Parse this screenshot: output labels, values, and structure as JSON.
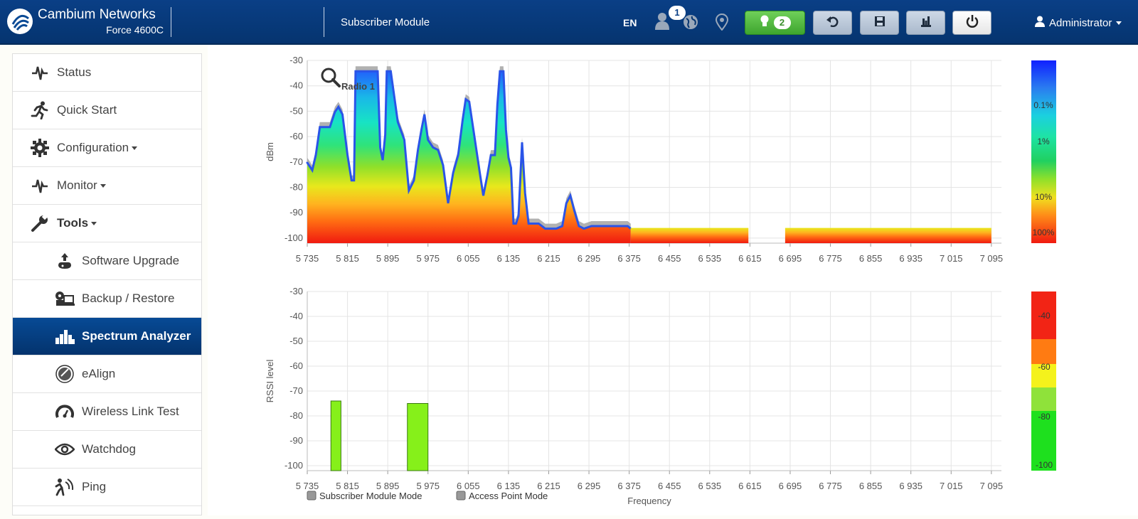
{
  "header": {
    "brand": "Cambium Networks",
    "model": "Force 4600C",
    "module": "Subscriber Module",
    "lang": "EN",
    "users_badge": "1",
    "alerts_badge": "2",
    "user_label": "Administrator"
  },
  "sidebar": {
    "items": [
      {
        "label": "Status",
        "icon": "pulse-icon"
      },
      {
        "label": "Quick Start",
        "icon": "running-person-icon"
      },
      {
        "label": "Configuration",
        "icon": "gear-icon"
      },
      {
        "label": "Monitor",
        "icon": "pulse-icon"
      },
      {
        "label": "Tools",
        "icon": "wrench-icon"
      },
      {
        "label": "Software Upgrade",
        "icon": "upload-icon"
      },
      {
        "label": "Backup / Restore",
        "icon": "backup-icon"
      },
      {
        "label": "Spectrum Analyzer",
        "icon": "bar-chart-icon"
      },
      {
        "label": "eAlign",
        "icon": "dish-icon"
      },
      {
        "label": "Wireless Link Test",
        "icon": "gauge-icon"
      },
      {
        "label": "Watchdog",
        "icon": "eye-icon"
      },
      {
        "label": "Ping",
        "icon": "ping-icon"
      }
    ]
  },
  "chart_data": [
    {
      "type": "heatmap",
      "annotation": "Radio 1",
      "ylabel": "dBm",
      "xlabel": "",
      "ylim": [
        -102,
        -30
      ],
      "yticks": [
        "-30",
        "-40",
        "-50",
        "-60",
        "-70",
        "-80",
        "-90",
        "-100"
      ],
      "xlim": [
        5735,
        7115
      ],
      "xticks": [
        "5 735",
        "5 815",
        "5 895",
        "5 975",
        "6 055",
        "6 135",
        "6 215",
        "6 295",
        "6 375",
        "6 455",
        "6 535",
        "6 615",
        "6 695",
        "6 775",
        "6 855",
        "6 935",
        "7 015",
        "7 095"
      ],
      "grid": true,
      "colorscale": [
        "0.1%",
        "1%",
        "10%",
        "100%"
      ],
      "envelope": [
        [
          5735,
          -70
        ],
        [
          5745,
          -73
        ],
        [
          5752,
          -67
        ],
        [
          5760,
          -56
        ],
        [
          5770,
          -56
        ],
        [
          5780,
          -56
        ],
        [
          5790,
          -50
        ],
        [
          5797,
          -48
        ],
        [
          5805,
          -51
        ],
        [
          5810,
          -59
        ],
        [
          5815,
          -67
        ],
        [
          5823,
          -77
        ],
        [
          5828,
          -77
        ],
        [
          5831,
          -34
        ],
        [
          5875,
          -34
        ],
        [
          5880,
          -64
        ],
        [
          5885,
          -69
        ],
        [
          5890,
          -59
        ],
        [
          5893,
          -34
        ],
        [
          5901,
          -34
        ],
        [
          5915,
          -54
        ],
        [
          5928,
          -61
        ],
        [
          5937,
          -81
        ],
        [
          5947,
          -77
        ],
        [
          5955,
          -65
        ],
        [
          5962,
          -57
        ],
        [
          5968,
          -51
        ],
        [
          5975,
          -61
        ],
        [
          5985,
          -64
        ],
        [
          5995,
          -65
        ],
        [
          6005,
          -71
        ],
        [
          6015,
          -86
        ],
        [
          6025,
          -74
        ],
        [
          6035,
          -67
        ],
        [
          6044,
          -53
        ],
        [
          6050,
          -45
        ],
        [
          6057,
          -46
        ],
        [
          6066,
          -58
        ],
        [
          6078,
          -74
        ],
        [
          6085,
          -83
        ],
        [
          6093,
          -75
        ],
        [
          6100,
          -67
        ],
        [
          6108,
          -67
        ],
        [
          6113,
          -47
        ],
        [
          6118,
          -34
        ],
        [
          6125,
          -34
        ],
        [
          6130,
          -57
        ],
        [
          6135,
          -68
        ],
        [
          6140,
          -72
        ],
        [
          6145,
          -94
        ],
        [
          6150,
          -94
        ],
        [
          6155,
          -91
        ],
        [
          6162,
          -62
        ],
        [
          6168,
          -82
        ],
        [
          6175,
          -94
        ],
        [
          6185,
          -94
        ],
        [
          6195,
          -94
        ],
        [
          6208,
          -96
        ],
        [
          6218,
          -96
        ],
        [
          6230,
          -96
        ],
        [
          6242,
          -95
        ],
        [
          6250,
          -86
        ],
        [
          6258,
          -83
        ],
        [
          6266,
          -89
        ],
        [
          6275,
          -95
        ],
        [
          6285,
          -96
        ],
        [
          6300,
          -95
        ],
        [
          6320,
          -95
        ],
        [
          6340,
          -95
        ],
        [
          6355,
          -95
        ],
        [
          6372,
          -95
        ],
        [
          6378,
          -96
        ]
      ],
      "noise_floor_segments": [
        [
          6378,
          6612
        ],
        [
          6685,
          7095
        ]
      ],
      "noise_floor_top": -96,
      "noise_floor_bottom": -102
    },
    {
      "type": "bar",
      "ylabel": "RSSI level",
      "xlabel": "Frequency",
      "ylim": [
        -102,
        -30
      ],
      "yticks": [
        "-30",
        "-40",
        "-50",
        "-60",
        "-70",
        "-80",
        "-90",
        "-100"
      ],
      "xlim": [
        5735,
        7115
      ],
      "xticks": [
        "5 735",
        "5 815",
        "5 895",
        "5 975",
        "6 055",
        "6 135",
        "6 215",
        "6 295",
        "6 375",
        "6 455",
        "6 535",
        "6 615",
        "6 695",
        "6 775",
        "6 855",
        "6 935",
        "7 015",
        "7 095"
      ],
      "grid": true,
      "series": [
        {
          "name": "Subscriber Module Mode",
          "values": [
            {
              "x0": 5782,
              "x1": 5802,
              "y": -74
            },
            {
              "x0": 5934,
              "x1": 5975,
              "y": -75
            }
          ]
        },
        {
          "name": "Access Point Mode",
          "values": []
        }
      ],
      "colorscale": [
        "-40",
        "-60",
        "-80",
        "-100"
      ]
    }
  ]
}
